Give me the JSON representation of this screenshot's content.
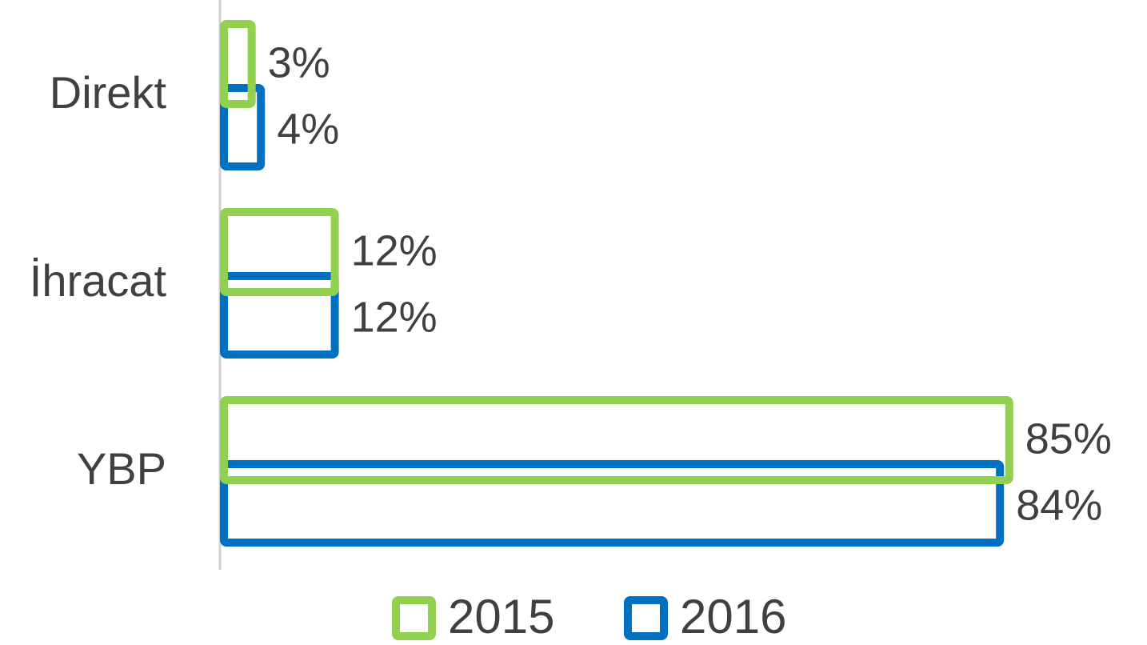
{
  "chart_data": {
    "type": "bar",
    "orientation": "horizontal",
    "categories": [
      "Direkt",
      "İhracat",
      "YBP"
    ],
    "series": [
      {
        "name": "2015",
        "color": "#92d050",
        "values": [
          3,
          12,
          85
        ],
        "value_labels": [
          "3%",
          "12%",
          "85%"
        ]
      },
      {
        "name": "2016",
        "color": "#0070c0",
        "values": [
          4,
          12,
          84
        ],
        "value_labels": [
          "4%",
          "12%",
          "84%"
        ]
      }
    ],
    "legend": "bottom"
  }
}
